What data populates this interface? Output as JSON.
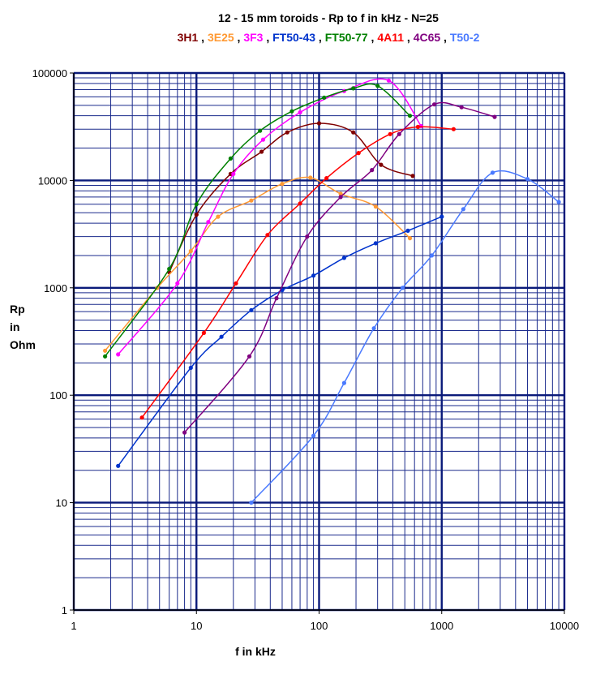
{
  "chart_data": {
    "type": "line",
    "title": "12 - 15 mm toroids   -  Rp to f in kHz  - N=25",
    "xlabel": "f in kHz",
    "ylabel_lines": [
      "Rp",
      "in",
      "Ohm"
    ],
    "x_scale": "log",
    "y_scale": "log",
    "xlim": [
      1,
      10000
    ],
    "ylim": [
      1,
      100000
    ],
    "x_ticks": [
      1,
      10,
      100,
      1000,
      10000
    ],
    "x_tick_labels": [
      "1",
      "10",
      "100",
      "1000",
      "10000"
    ],
    "y_ticks": [
      1,
      10,
      100,
      1000,
      10000,
      100000
    ],
    "y_tick_labels": [
      "1",
      "10",
      "100",
      "1000",
      "10000",
      "100000"
    ],
    "grid": true,
    "legend_placement": "top",
    "legend_separator": " , ",
    "series": [
      {
        "name": "3H1",
        "color": "#800000",
        "x": [
          6,
          10,
          19,
          34,
          55,
          100,
          190,
          320,
          580
        ],
        "y": [
          1400,
          4800,
          11500,
          18500,
          28000,
          34000,
          28000,
          14000,
          11000
        ]
      },
      {
        "name": "3E25",
        "color": "#ff9933",
        "x": [
          1.8,
          4.8,
          9,
          15,
          28,
          50,
          85,
          150,
          290,
          550
        ],
        "y": [
          260,
          1000,
          2200,
          4600,
          6500,
          9300,
          10600,
          7500,
          5700,
          2900
        ]
      },
      {
        "name": "3F3",
        "color": "#ff00ff",
        "x": [
          2.3,
          7,
          12.5,
          20,
          35,
          70,
          160,
          370,
          680
        ],
        "y": [
          240,
          1100,
          4100,
          11500,
          24000,
          43000,
          68000,
          85000,
          32000
        ]
      },
      {
        "name": "FT50-43",
        "color": "#0033cc",
        "x": [
          2.3,
          9,
          16,
          28,
          50,
          90,
          160,
          290,
          530,
          1000
        ],
        "y": [
          22,
          180,
          350,
          620,
          950,
          1300,
          1900,
          2600,
          3400,
          4600
        ]
      },
      {
        "name": "FT50-77",
        "color": "#008000",
        "x": [
          1.8,
          6,
          10,
          19,
          33,
          60,
          110,
          190,
          300,
          550
        ],
        "y": [
          230,
          1500,
          6000,
          16000,
          29000,
          44000,
          59000,
          72000,
          76000,
          40000
        ]
      },
      {
        "name": "4A11",
        "color": "#ff0000",
        "x": [
          3.6,
          11.5,
          21,
          38,
          70,
          115,
          210,
          380,
          640,
          1250
        ],
        "y": [
          62,
          380,
          1100,
          3100,
          6100,
          10500,
          18000,
          27000,
          31500,
          30000
        ]
      },
      {
        "name": "4C65",
        "color": "#800080",
        "x": [
          8,
          27,
          45,
          80,
          150,
          270,
          450,
          870,
          1450,
          2700
        ],
        "y": [
          45,
          230,
          800,
          3000,
          7000,
          12500,
          27000,
          51000,
          48000,
          39000
        ]
      },
      {
        "name": "T50-2",
        "color": "#4a7aff",
        "x": [
          28,
          90,
          160,
          280,
          480,
          830,
          1500,
          2600,
          5000,
          9000
        ],
        "y": [
          10,
          42,
          130,
          420,
          1000,
          2000,
          5400,
          11800,
          10300,
          6300
        ]
      }
    ]
  }
}
